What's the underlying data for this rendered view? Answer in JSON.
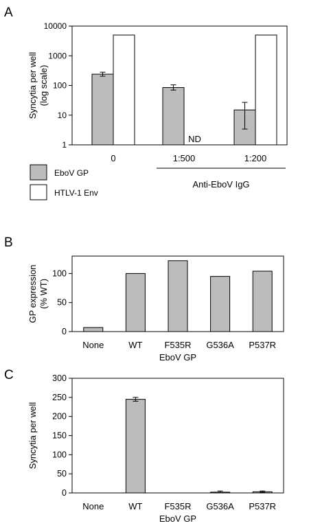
{
  "colors": {
    "gray_bar": "#bcbcbc",
    "white_bar": "#ffffff",
    "stroke": "#000000"
  },
  "chart_data": [
    {
      "panel": "A",
      "type": "bar",
      "scale": "log",
      "ylabel": [
        "Syncytia per well",
        "(log scale)"
      ],
      "ylim": [
        1,
        10000
      ],
      "yticks": [
        1,
        10,
        100,
        1000,
        10000
      ],
      "ytick_labels": [
        "1",
        "10",
        "100",
        "1000",
        "10000"
      ],
      "categories": [
        "0",
        "1:500",
        "1:200"
      ],
      "group_label": "Anti-EboV IgG",
      "series": [
        {
          "name": "EboV GP",
          "color": "#bcbcbc",
          "values": [
            240,
            85,
            15
          ],
          "err_low": [
            205,
            70,
            3.4
          ],
          "err_high": [
            280,
            105,
            27
          ]
        },
        {
          "name": "HTLV-1 Env",
          "color": "#ffffff",
          "values": [
            5000,
            null,
            5000
          ],
          "labels": [
            null,
            "ND",
            null
          ]
        }
      ],
      "legend_position": "bottom-left"
    },
    {
      "panel": "B",
      "type": "bar",
      "scale": "linear",
      "ylabel": [
        "GP expression",
        "(% WT)"
      ],
      "ylim": [
        0,
        130
      ],
      "yticks": [
        0,
        50,
        100
      ],
      "ytick_labels": [
        "0",
        "50",
        "100"
      ],
      "categories": [
        "None",
        "WT",
        "F535R",
        "G536A",
        "P537R"
      ],
      "xlabel": "EboV GP",
      "series": [
        {
          "color": "#bcbcbc",
          "values": [
            7,
            100,
            122,
            95,
            104
          ]
        }
      ]
    },
    {
      "panel": "C",
      "type": "bar",
      "scale": "linear",
      "ylabel": [
        "Syncytia per well"
      ],
      "ylim": [
        0,
        300
      ],
      "yticks": [
        0,
        50,
        100,
        150,
        200,
        250,
        300
      ],
      "ytick_labels": [
        "0",
        "50",
        "100",
        "150",
        "200",
        "250",
        "300"
      ],
      "categories": [
        "None",
        "WT",
        "F535R",
        "G536A",
        "P537R"
      ],
      "xlabel": "EboV GP",
      "series": [
        {
          "color": "#bcbcbc",
          "values": [
            0,
            245,
            0,
            2,
            3
          ],
          "err": [
            0,
            5,
            0,
            3,
            2
          ]
        }
      ]
    }
  ]
}
